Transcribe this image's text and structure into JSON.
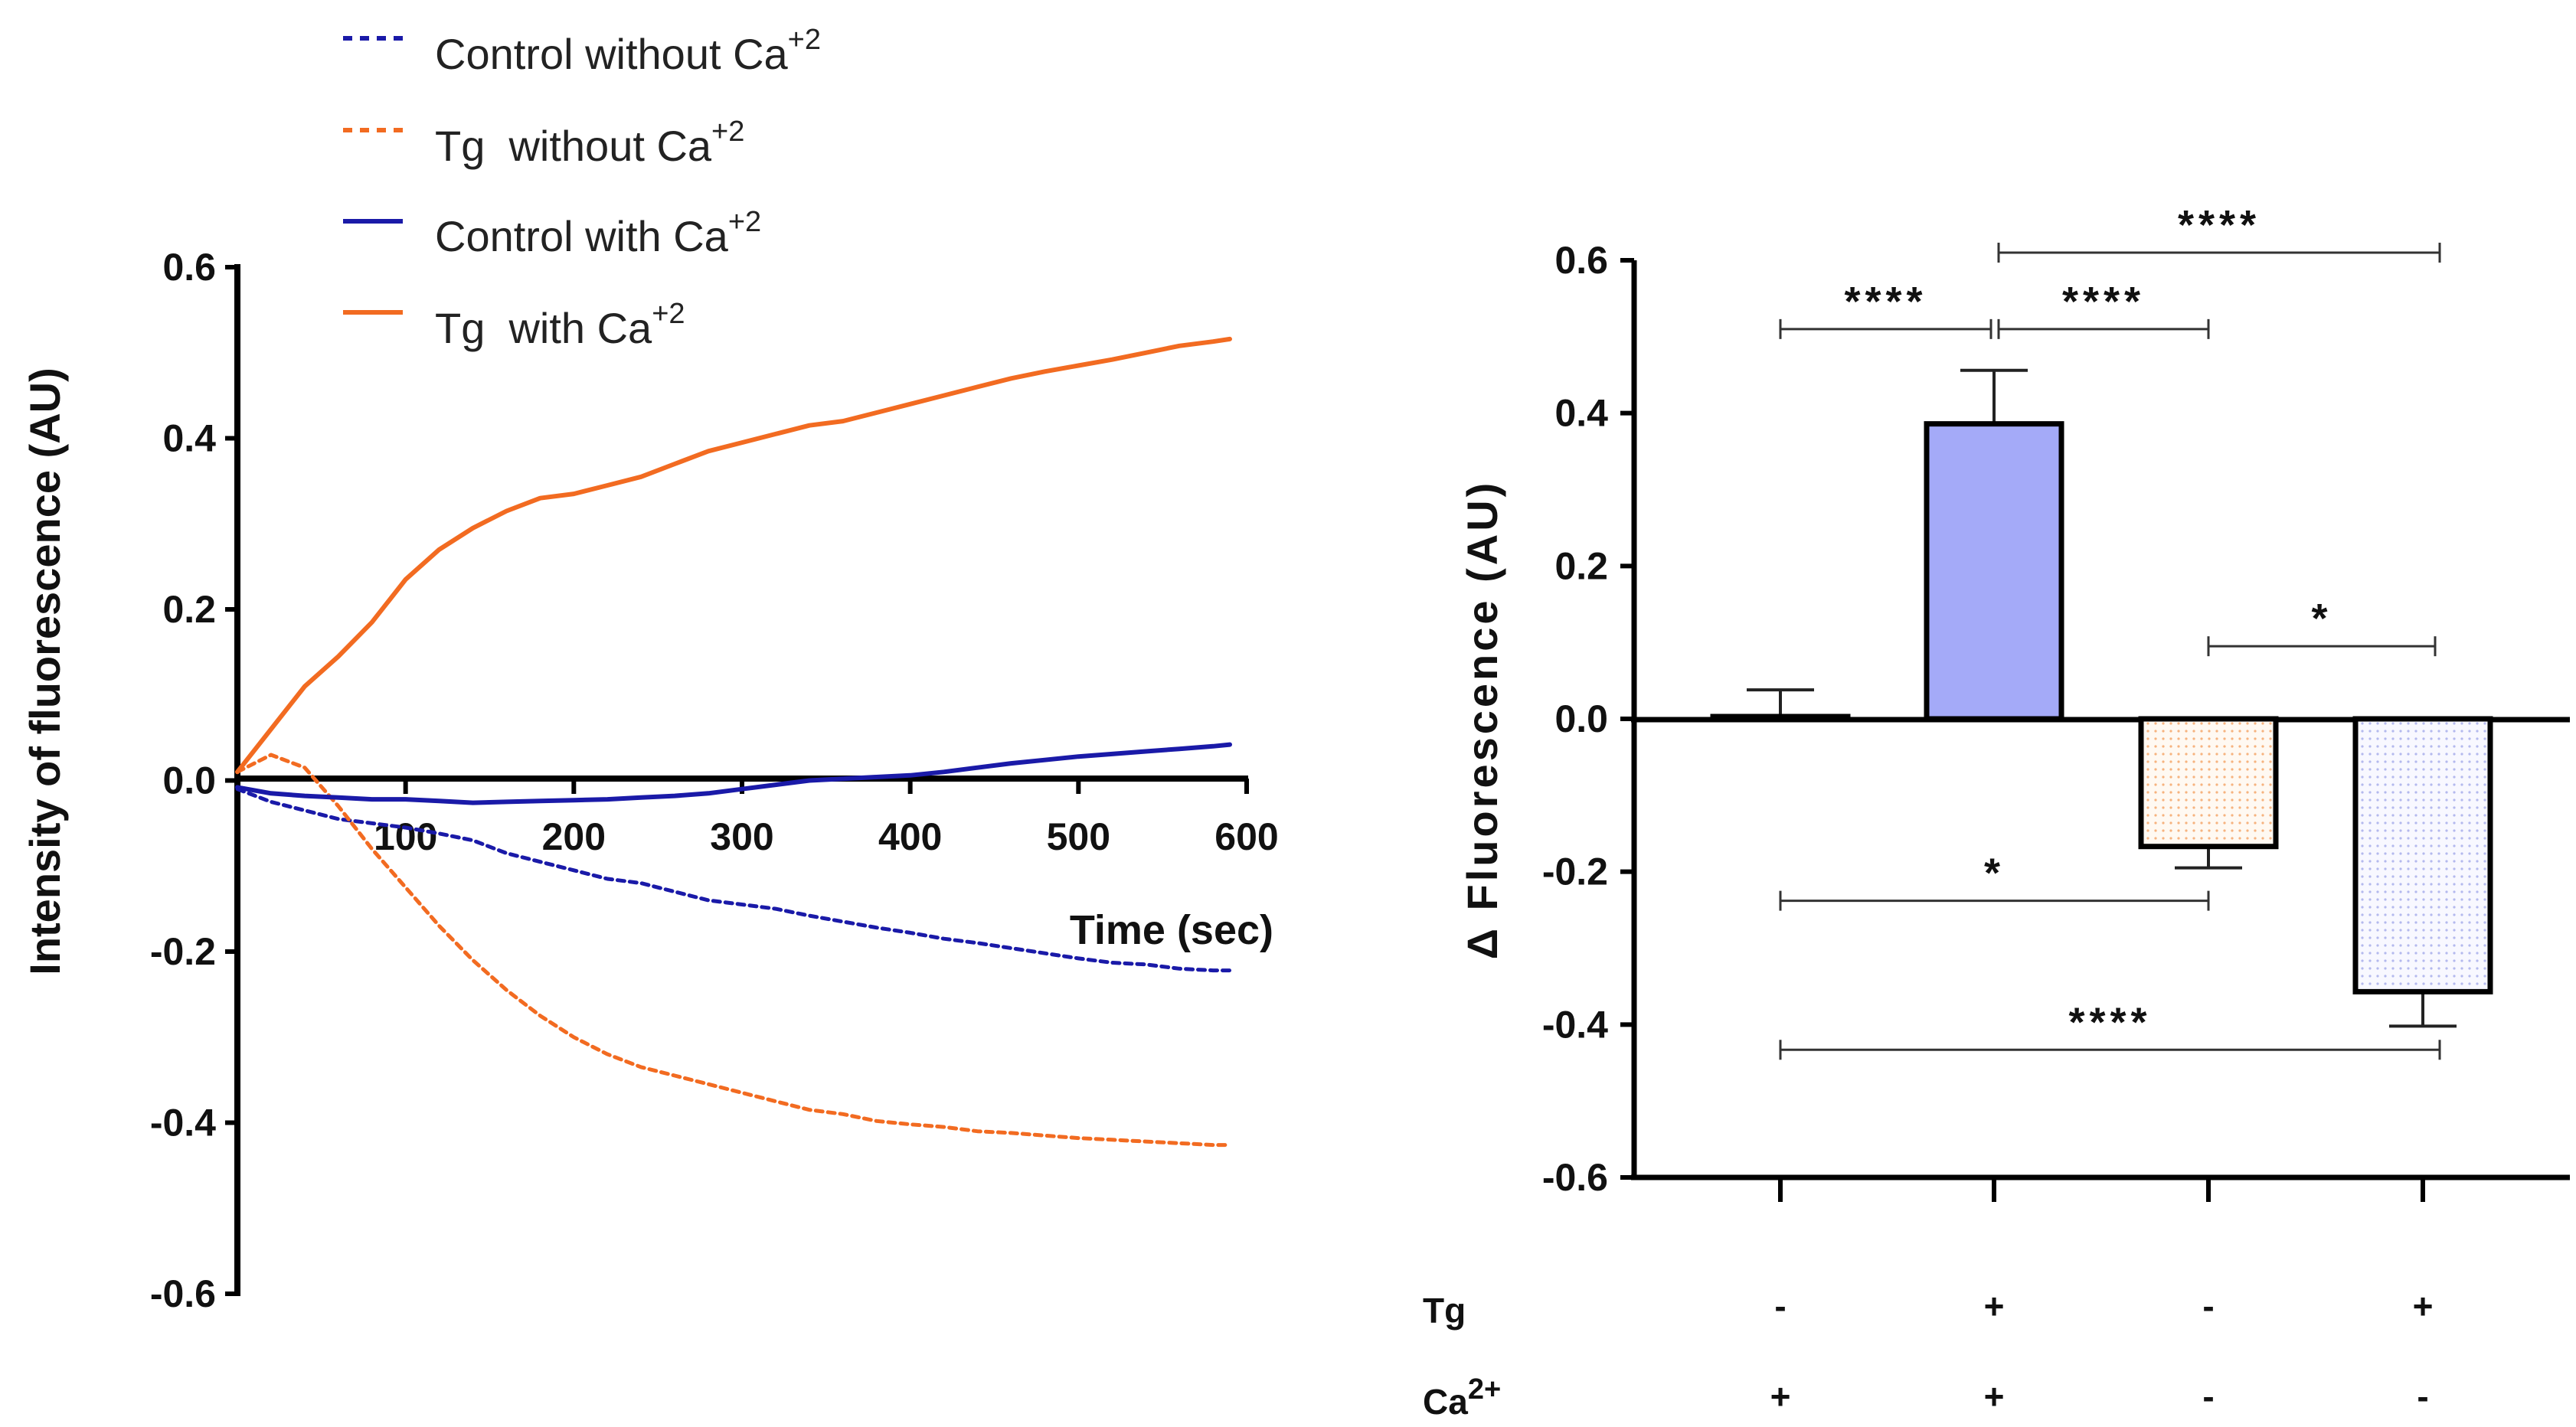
{
  "chart_data": [
    {
      "type": "line",
      "title": "",
      "xlabel": "Time (sec)",
      "ylabel": "Intensity of fluorescence (AU)",
      "xlim": [
        0,
        600
      ],
      "ylim": [
        -0.6,
        0.6
      ],
      "xticks": [
        "100",
        "200",
        "300",
        "400",
        "500",
        "600"
      ],
      "yticks": [
        "0.6",
        "0.4",
        "0.2",
        "0.0",
        "-0.2",
        "-0.4",
        "-0.6"
      ],
      "x": [
        0,
        20,
        40,
        60,
        80,
        100,
        120,
        140,
        160,
        180,
        200,
        220,
        240,
        260,
        280,
        300,
        320,
        340,
        360,
        380,
        400,
        420,
        440,
        460,
        480,
        500,
        520,
        540,
        560,
        580,
        590
      ],
      "series": [
        {
          "name": "Control without Ca",
          "superscript": "+2",
          "color": "#1a1aa8",
          "style": "dashed",
          "values": [
            -0.01,
            -0.025,
            -0.035,
            -0.045,
            -0.05,
            -0.055,
            -0.062,
            -0.07,
            -0.085,
            -0.095,
            -0.105,
            -0.115,
            -0.12,
            -0.13,
            -0.14,
            -0.145,
            -0.15,
            -0.158,
            -0.165,
            -0.172,
            -0.178,
            -0.185,
            -0.19,
            -0.196,
            -0.202,
            -0.208,
            -0.213,
            -0.215,
            -0.22,
            -0.222,
            -0.222
          ]
        },
        {
          "name": "Tg  without Ca",
          "superscript": "+2",
          "color": "#f26b21",
          "style": "dashed",
          "values": [
            0.01,
            0.03,
            0.015,
            -0.03,
            -0.08,
            -0.125,
            -0.17,
            -0.21,
            -0.245,
            -0.275,
            -0.3,
            -0.32,
            -0.335,
            -0.345,
            -0.355,
            -0.365,
            -0.375,
            -0.385,
            -0.39,
            -0.398,
            -0.402,
            -0.405,
            -0.41,
            -0.412,
            -0.415,
            -0.418,
            -0.42,
            -0.422,
            -0.424,
            -0.426,
            -0.426
          ]
        },
        {
          "name": "Control with Ca",
          "superscript": "+2",
          "color": "#1a1aa8",
          "style": "solid",
          "values": [
            -0.008,
            -0.015,
            -0.018,
            -0.02,
            -0.022,
            -0.022,
            -0.024,
            -0.026,
            -0.025,
            -0.024,
            -0.023,
            -0.022,
            -0.02,
            -0.018,
            -0.015,
            -0.01,
            -0.005,
            0.0,
            0.002,
            0.004,
            0.006,
            0.01,
            0.015,
            0.02,
            0.024,
            0.028,
            0.031,
            0.034,
            0.037,
            0.04,
            0.042
          ]
        },
        {
          "name": "Tg  with Ca",
          "superscript": "+2",
          "color": "#f26b21",
          "style": "solid",
          "values": [
            0.01,
            0.06,
            0.11,
            0.145,
            0.185,
            0.235,
            0.27,
            0.295,
            0.315,
            0.33,
            0.335,
            0.345,
            0.355,
            0.37,
            0.385,
            0.395,
            0.405,
            0.415,
            0.42,
            0.43,
            0.44,
            0.45,
            0.46,
            0.47,
            0.478,
            0.485,
            0.492,
            0.5,
            0.508,
            0.513,
            0.516
          ]
        }
      ]
    },
    {
      "type": "bar",
      "title": "",
      "ylabel": "Δ Fluorescence (AU)",
      "ylim": [
        -0.6,
        0.6
      ],
      "yticks": [
        "0.6",
        "0.4",
        "0.2",
        "0.0",
        "-0.2",
        "-0.4",
        "-0.6"
      ],
      "bars": [
        {
          "tg": "-",
          "ca": "+",
          "value": 0.003,
          "error": 0.035,
          "fill": "#ffffff",
          "pattern": "none"
        },
        {
          "tg": "+",
          "ca": "+",
          "value": 0.386,
          "error": 0.07,
          "fill": "#a4aaf8",
          "pattern": "none"
        },
        {
          "tg": "-",
          "ca": "-",
          "value": -0.167,
          "error": 0.028,
          "fill": "#fff7ee",
          "pattern": "orange-dots"
        },
        {
          "tg": "+",
          "ca": "-",
          "value": -0.357,
          "error": 0.045,
          "fill": "#f6f7ff",
          "pattern": "blue-dots"
        }
      ],
      "row_labels": {
        "tg": "Tg",
        "ca": "Ca",
        "ca_sup": "2+"
      },
      "significance": [
        {
          "from": 0,
          "to": 1,
          "label": "****",
          "y": 0.51
        },
        {
          "from": 1,
          "to": 2,
          "label": "****",
          "y": 0.51
        },
        {
          "from": 1,
          "to": 3,
          "label": "****",
          "y": 0.61
        },
        {
          "from": 2,
          "to": 3,
          "label": "*",
          "y": 0.095
        },
        {
          "from": 0,
          "to": 2,
          "label": "*",
          "y": -0.238
        },
        {
          "from": 0,
          "to": 3,
          "label": "****",
          "y": -0.433
        }
      ]
    }
  ]
}
